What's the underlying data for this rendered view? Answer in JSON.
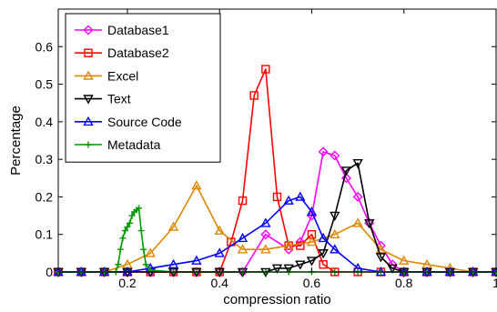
{
  "chart_data": {
    "type": "line",
    "title": "",
    "xlabel": "compression ratio",
    "ylabel": "Percentage",
    "xlim": [
      0.05,
      1.0
    ],
    "ylim": [
      0,
      0.7
    ],
    "xticks": [
      0.2,
      0.4,
      0.6,
      0.8,
      1
    ],
    "xtick_labels": [
      "0.2",
      "0.4",
      "0.6",
      "0.8",
      "1"
    ],
    "yticks": [
      0,
      0.1,
      0.2,
      0.3,
      0.4,
      0.5,
      0.6
    ],
    "ytick_labels": [
      "0",
      "0.1",
      "0.2",
      "0.3",
      "0.4",
      "0.5",
      "0.6"
    ],
    "grid": false,
    "legend_position": "top-left",
    "series": [
      {
        "name": "Database1",
        "color": "#ff00ff",
        "marker": "diamond",
        "x": [
          0.05,
          0.1,
          0.15,
          0.2,
          0.25,
          0.3,
          0.35,
          0.4,
          0.45,
          0.5,
          0.55,
          0.575,
          0.6,
          0.625,
          0.65,
          0.675,
          0.7,
          0.725,
          0.75,
          0.775,
          0.8,
          0.85,
          0.9,
          0.95,
          1.0
        ],
        "y": [
          0,
          0,
          0,
          0,
          0,
          0,
          0,
          0,
          0,
          0.1,
          0.06,
          0.08,
          0.15,
          0.32,
          0.31,
          0.25,
          0.2,
          0.13,
          0.07,
          0.02,
          0,
          0,
          0,
          0,
          0
        ]
      },
      {
        "name": "Database2",
        "color": "#ff0000",
        "marker": "square",
        "x": [
          0.05,
          0.1,
          0.15,
          0.2,
          0.25,
          0.3,
          0.35,
          0.4,
          0.425,
          0.45,
          0.475,
          0.5,
          0.525,
          0.55,
          0.575,
          0.6,
          0.625,
          0.65,
          0.7,
          0.75,
          0.8,
          0.85,
          0.9,
          0.95,
          1.0
        ],
        "y": [
          0,
          0,
          0,
          0,
          0,
          0,
          0,
          0,
          0.08,
          0.19,
          0.47,
          0.54,
          0.2,
          0.07,
          0.07,
          0.1,
          0.02,
          0,
          0,
          0,
          0,
          0,
          0,
          0,
          0
        ]
      },
      {
        "name": "Excel",
        "color": "#dd8800",
        "marker": "triangle-up",
        "x": [
          0.05,
          0.1,
          0.15,
          0.2,
          0.25,
          0.3,
          0.35,
          0.4,
          0.45,
          0.5,
          0.55,
          0.6,
          0.65,
          0.7,
          0.75,
          0.8,
          0.85,
          0.9,
          0.95,
          1.0
        ],
        "y": [
          0,
          0,
          0,
          0.02,
          0.05,
          0.12,
          0.23,
          0.11,
          0.06,
          0.06,
          0.07,
          0.08,
          0.1,
          0.13,
          0.06,
          0.03,
          0.02,
          0.01,
          0,
          0
        ]
      },
      {
        "name": "Text",
        "color": "#000000",
        "marker": "triangle-down",
        "x": [
          0.05,
          0.1,
          0.15,
          0.2,
          0.25,
          0.3,
          0.35,
          0.4,
          0.45,
          0.5,
          0.525,
          0.55,
          0.575,
          0.6,
          0.625,
          0.65,
          0.675,
          0.7,
          0.725,
          0.75,
          0.775,
          0.8,
          0.85,
          0.9,
          0.95,
          1.0
        ],
        "y": [
          0,
          0,
          0,
          0,
          0,
          0,
          0,
          0,
          0,
          0,
          0.01,
          0.01,
          0.02,
          0.03,
          0.05,
          0.15,
          0.27,
          0.29,
          0.13,
          0.04,
          0.01,
          0,
          0,
          0,
          0,
          0
        ]
      },
      {
        "name": "Source Code",
        "color": "#0000ff",
        "marker": "triangle-up",
        "x": [
          0.05,
          0.1,
          0.15,
          0.2,
          0.25,
          0.3,
          0.35,
          0.4,
          0.45,
          0.5,
          0.55,
          0.575,
          0.6,
          0.625,
          0.65,
          0.7,
          0.75,
          0.8,
          0.85,
          0.9,
          0.95,
          1.0
        ],
        "y": [
          0,
          0,
          0,
          0,
          0.01,
          0.02,
          0.03,
          0.05,
          0.09,
          0.13,
          0.19,
          0.2,
          0.16,
          0.09,
          0.06,
          0.01,
          0,
          0,
          0,
          0,
          0,
          0
        ]
      },
      {
        "name": "Metadata",
        "color": "#009900",
        "marker": "plus",
        "x": [
          0.05,
          0.1,
          0.15,
          0.175,
          0.18,
          0.185,
          0.19,
          0.195,
          0.2,
          0.205,
          0.21,
          0.215,
          0.22,
          0.225,
          0.23,
          0.235,
          0.24,
          0.25,
          0.3,
          0.35,
          0.4,
          0.45,
          0.5,
          0.55,
          0.6,
          0.65,
          0.7,
          0.75,
          0.8,
          0.85,
          0.9,
          0.95,
          1.0
        ],
        "y": [
          0,
          0,
          0,
          0,
          0.02,
          0.06,
          0.09,
          0.11,
          0.12,
          0.13,
          0.15,
          0.16,
          0.165,
          0.17,
          0.11,
          0.06,
          0.02,
          0.005,
          0,
          0,
          0,
          0,
          0,
          0,
          0,
          0,
          0,
          0,
          0,
          0,
          0,
          0,
          0
        ]
      }
    ]
  }
}
